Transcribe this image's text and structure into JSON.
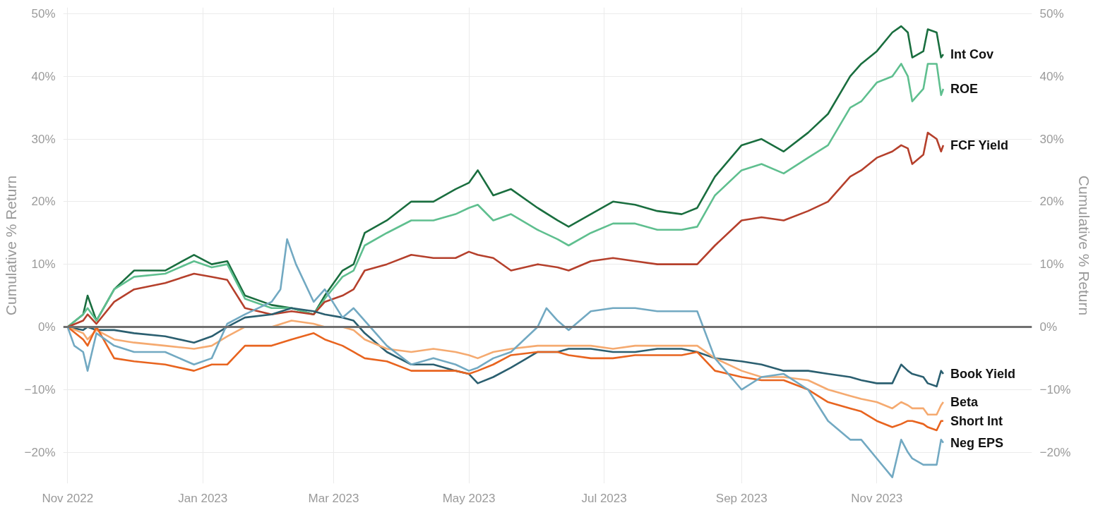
{
  "chart_data": {
    "type": "line",
    "ylabel": "Cumulative % Return",
    "y2label": "Cumulative % Return",
    "x": [
      "2022-11-01",
      "2022-11-08",
      "2022-11-10",
      "2022-11-14",
      "2022-11-22",
      "2022-12-01",
      "2022-12-15",
      "2022-12-28",
      "2023-01-05",
      "2023-01-12",
      "2023-01-20",
      "2023-02-01",
      "2023-02-10",
      "2023-02-20",
      "2023-02-25",
      "2023-03-05",
      "2023-03-10",
      "2023-03-15",
      "2023-03-25",
      "2023-04-05",
      "2023-04-15",
      "2023-04-25",
      "2023-05-01",
      "2023-05-05",
      "2023-05-12",
      "2023-05-20",
      "2023-06-01",
      "2023-06-10",
      "2023-06-15",
      "2023-06-25",
      "2023-07-05",
      "2023-07-15",
      "2023-07-25",
      "2023-08-05",
      "2023-08-12",
      "2023-08-20",
      "2023-09-01",
      "2023-09-10",
      "2023-09-20",
      "2023-10-01",
      "2023-10-10",
      "2023-10-20",
      "2023-10-25",
      "2023-11-01",
      "2023-11-08",
      "2023-11-12",
      "2023-11-15",
      "2023-11-17",
      "2023-11-22",
      "2023-11-24",
      "2023-11-28",
      "2023-11-30",
      "2023-12-01"
    ],
    "series": [
      {
        "name": "Int Cov",
        "color": "#1a6e3f",
        "values": [
          0,
          2,
          5,
          1,
          6,
          9,
          9,
          11.5,
          10,
          10.5,
          5,
          3.5,
          3,
          2,
          5,
          9,
          10,
          15,
          17,
          20,
          20,
          22,
          23,
          25,
          21,
          22,
          19,
          17,
          16,
          18,
          20,
          19.5,
          18.5,
          18,
          19,
          24,
          29,
          30,
          28,
          31,
          34,
          40,
          42,
          44,
          47,
          48,
          47,
          43,
          44,
          47.5,
          47,
          43,
          43.5
        ]
      },
      {
        "name": "ROE",
        "color": "#5fbf8f",
        "values": [
          0,
          2,
          3,
          1,
          6,
          8,
          8.5,
          10.5,
          9.5,
          10,
          4.5,
          3,
          3,
          2,
          4.5,
          8,
          9,
          13,
          15,
          17,
          17,
          18,
          19,
          19.5,
          17,
          18,
          15.5,
          14,
          13,
          15,
          16.5,
          16.5,
          15.5,
          15.5,
          16,
          21,
          25,
          26,
          24.5,
          27,
          29,
          35,
          36,
          39,
          40,
          42,
          40,
          36,
          38,
          42,
          42,
          37,
          38
        ]
      },
      {
        "name": "FCF Yield",
        "color": "#b5402c",
        "values": [
          0,
          1,
          2,
          0.5,
          4,
          6,
          7,
          8.5,
          8,
          7.5,
          3,
          2,
          2.5,
          2,
          4,
          5,
          6,
          9,
          10,
          11.5,
          11,
          11,
          12,
          11.5,
          11,
          9,
          10,
          9.5,
          9,
          10.5,
          11,
          10.5,
          10,
          10,
          10,
          13,
          17,
          17.5,
          17,
          18.5,
          20,
          24,
          25,
          27,
          28,
          29,
          28.5,
          26,
          27.5,
          31,
          30,
          28,
          29
        ]
      },
      {
        "name": "Book Yield",
        "color": "#2b5f70",
        "values": [
          0,
          -0.5,
          0,
          -0.5,
          -0.5,
          -1,
          -1.5,
          -2.5,
          -1.5,
          0,
          1.5,
          2,
          3,
          2.5,
          2,
          1.5,
          1,
          -1,
          -4,
          -6,
          -6,
          -7,
          -7.5,
          -9,
          -8,
          -6.5,
          -4,
          -4,
          -3.5,
          -3.5,
          -4,
          -4,
          -3.5,
          -3.5,
          -4,
          -5,
          -5.5,
          -6,
          -7,
          -7,
          -7.5,
          -8,
          -8.5,
          -9,
          -9,
          -6,
          -7,
          -7.5,
          -8,
          -9,
          -9.5,
          -7,
          -7.5
        ]
      },
      {
        "name": "Beta",
        "color": "#f5aa70",
        "values": [
          0,
          -1,
          -2,
          -0.5,
          -2,
          -2.5,
          -3,
          -3.5,
          -3,
          -1.5,
          0,
          0,
          1,
          0.5,
          0,
          0,
          -0.5,
          -2,
          -3.5,
          -4,
          -3.5,
          -4,
          -4.5,
          -5,
          -4,
          -3.5,
          -3,
          -3,
          -3,
          -3,
          -3.5,
          -3,
          -3,
          -3,
          -3,
          -5,
          -7,
          -8,
          -8,
          -8.5,
          -10,
          -11,
          -11.5,
          -12,
          -13,
          -12,
          -12.5,
          -13,
          -13,
          -14,
          -14,
          -12.5,
          -12
        ]
      },
      {
        "name": "Short Int",
        "color": "#e8641f",
        "values": [
          0,
          -2,
          -3,
          0,
          -5,
          -5.5,
          -6,
          -7,
          -6,
          -6,
          -3,
          -3,
          -2,
          -1,
          -2,
          -3,
          -4,
          -5,
          -5.5,
          -7,
          -7,
          -7,
          -7.5,
          -7,
          -6,
          -4.5,
          -4,
          -4,
          -4.5,
          -5,
          -5,
          -4.5,
          -4.5,
          -4.5,
          -4,
          -7,
          -8,
          -8.5,
          -8.5,
          -10,
          -12,
          -13,
          -13.5,
          -15,
          -16,
          -15.5,
          -15,
          -15,
          -15.5,
          -16,
          -16.5,
          -15,
          -15
        ]
      },
      {
        "name": "Neg EPS",
        "color": "#72a9c2",
        "x": [
          "2022-11-01",
          "2022-11-04",
          "2022-11-08",
          "2022-11-10",
          "2022-11-14",
          "2022-11-22",
          "2022-12-01",
          "2022-12-15",
          "2022-12-28",
          "2023-01-05",
          "2023-01-12",
          "2023-01-20",
          "2023-02-01",
          "2023-02-05",
          "2023-02-08",
          "2023-02-12",
          "2023-02-20",
          "2023-02-25",
          "2023-03-05",
          "2023-03-10",
          "2023-03-15",
          "2023-03-25",
          "2023-04-05",
          "2023-04-15",
          "2023-04-25",
          "2023-05-01",
          "2023-05-05",
          "2023-05-12",
          "2023-05-20",
          "2023-06-01",
          "2023-06-05",
          "2023-06-10",
          "2023-06-15",
          "2023-06-25",
          "2023-07-05",
          "2023-07-15",
          "2023-07-25",
          "2023-08-05",
          "2023-08-12",
          "2023-08-20",
          "2023-09-01",
          "2023-09-10",
          "2023-09-20",
          "2023-10-01",
          "2023-10-10",
          "2023-10-20",
          "2023-10-25",
          "2023-11-01",
          "2023-11-08",
          "2023-11-12",
          "2023-11-15",
          "2023-11-17",
          "2023-11-22",
          "2023-11-24",
          "2023-11-28",
          "2023-11-30",
          "2023-12-01"
        ],
        "values": [
          0,
          -3,
          -4,
          -7,
          -1,
          -3,
          -4,
          -4,
          -6,
          -5,
          0.5,
          2,
          4,
          6,
          14,
          10,
          4,
          6,
          1.5,
          3,
          1,
          -3,
          -6,
          -5,
          -6,
          -7,
          -6.5,
          -5,
          -4,
          0,
          3,
          1,
          -0.5,
          2.5,
          3,
          3,
          2.5,
          2.5,
          2.5,
          -5,
          -10,
          -8,
          -7.5,
          -10,
          -15,
          -18,
          -18,
          -21,
          -24,
          -18,
          -20,
          -21,
          -22,
          -22,
          -22,
          -18,
          -18.5
        ]
      }
    ],
    "xlim": [
      "2022-10-30",
      "2024-01-10"
    ],
    "xticks": [
      {
        "value": "2022-11-01",
        "label": "Nov 2022"
      },
      {
        "value": "2023-01-01",
        "label": "Jan 2023"
      },
      {
        "value": "2023-03-01",
        "label": "Mar 2023"
      },
      {
        "value": "2023-05-01",
        "label": "May 2023"
      },
      {
        "value": "2023-07-01",
        "label": "Jul 2023"
      },
      {
        "value": "2023-09-01",
        "label": "Sep 2023"
      },
      {
        "value": "2023-11-01",
        "label": "Nov 2023"
      }
    ],
    "ylim": [
      -25,
      51
    ],
    "yticks": [
      {
        "value": -20,
        "label": "−20%"
      },
      {
        "value": -10,
        "label": "−10%"
      },
      {
        "value": 0,
        "label": "0%"
      },
      {
        "value": 10,
        "label": "10%"
      },
      {
        "value": 20,
        "label": "20%"
      },
      {
        "value": 30,
        "label": "30%"
      },
      {
        "value": 40,
        "label": "40%"
      },
      {
        "value": 50,
        "label": "50%"
      }
    ],
    "y2lim": [
      -25,
      51
    ],
    "y2ticks": [
      {
        "value": -20,
        "label": "−20%"
      },
      {
        "value": -10,
        "label": "−10%"
      },
      {
        "value": 0,
        "label": "0%"
      },
      {
        "value": 10,
        "label": "10%"
      },
      {
        "value": 20,
        "label": "20%"
      },
      {
        "value": 30,
        "label": "30%"
      },
      {
        "value": 40,
        "label": "40%"
      },
      {
        "value": 50,
        "label": "50%"
      }
    ],
    "ref_lines": [
      {
        "axis": "y",
        "value": 0,
        "color": "#707070"
      }
    ],
    "grid": true,
    "marker": "none",
    "line_style": "solid"
  }
}
